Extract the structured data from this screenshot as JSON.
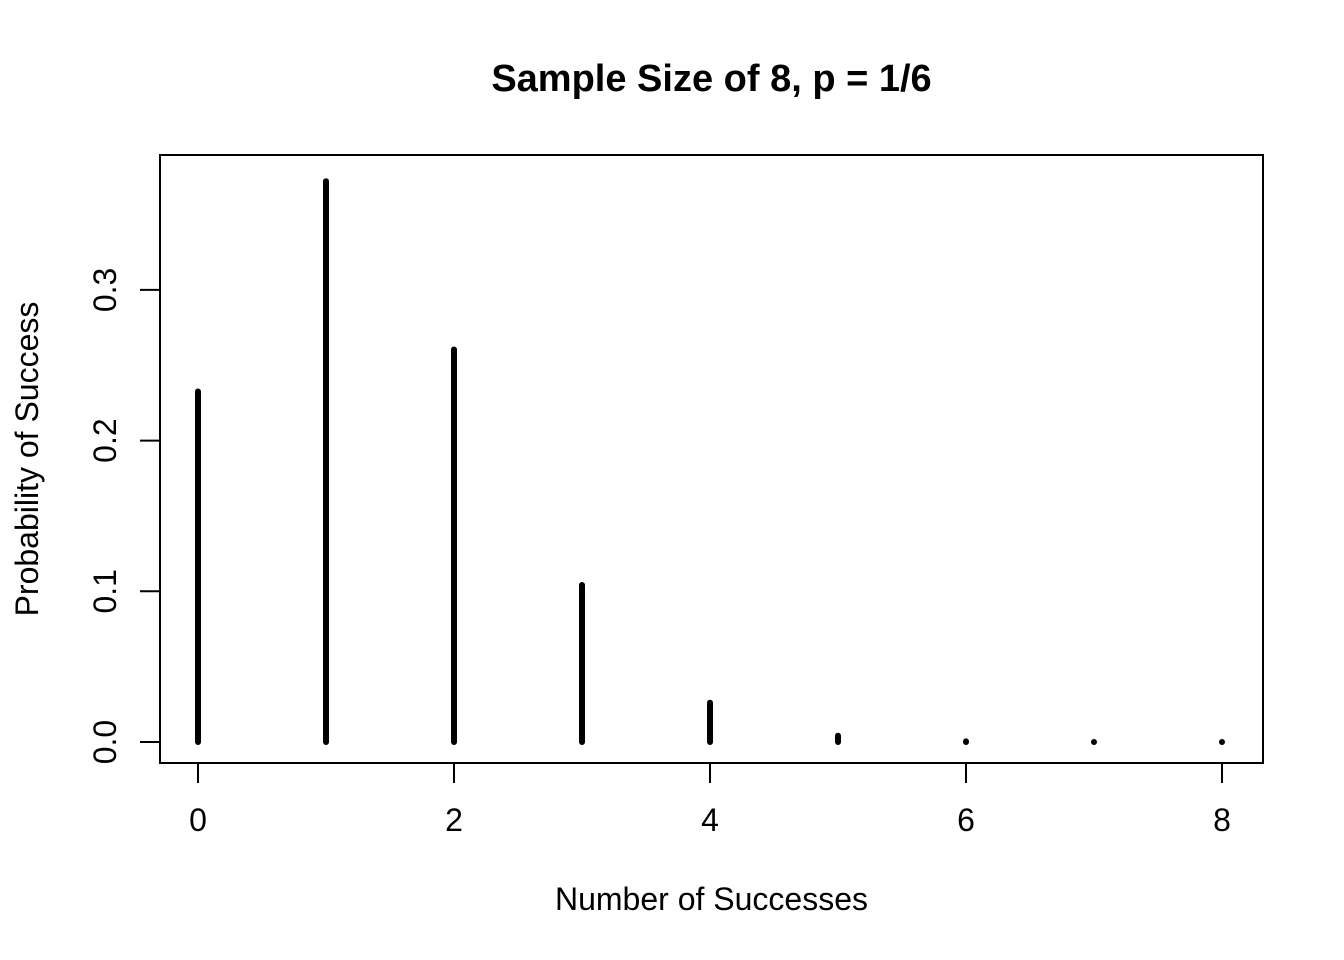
{
  "figure": {
    "background": "#ffffff",
    "foreground": "#000000"
  },
  "chart_data": {
    "type": "bar",
    "subtype": "spike-needle-plot",
    "title": "Sample Size of 8, p = 1/6",
    "xlabel": "Number of Successes",
    "ylabel": "Probability of Success",
    "x": [
      0,
      1,
      2,
      3,
      4,
      5,
      6,
      7,
      8
    ],
    "values": [
      0.232568,
      0.372109,
      0.260476,
      0.10419,
      0.026048,
      0.004168,
      0.000417,
      2.4e-05,
      1e-06
    ],
    "x_tick_values": [
      0,
      2,
      4,
      6,
      8
    ],
    "x_tick_labels": [
      "0",
      "2",
      "4",
      "6",
      "8"
    ],
    "y_tick_values": [
      0.0,
      0.1,
      0.2,
      0.3
    ],
    "y_tick_labels": [
      "0.0",
      "0.1",
      "0.2",
      "0.3"
    ],
    "xlim": [
      0,
      8
    ],
    "ylim": [
      0,
      0.372109
    ],
    "grid": false,
    "legend": "none",
    "line_color": "#000000",
    "spike_width": 6,
    "box": true
  }
}
